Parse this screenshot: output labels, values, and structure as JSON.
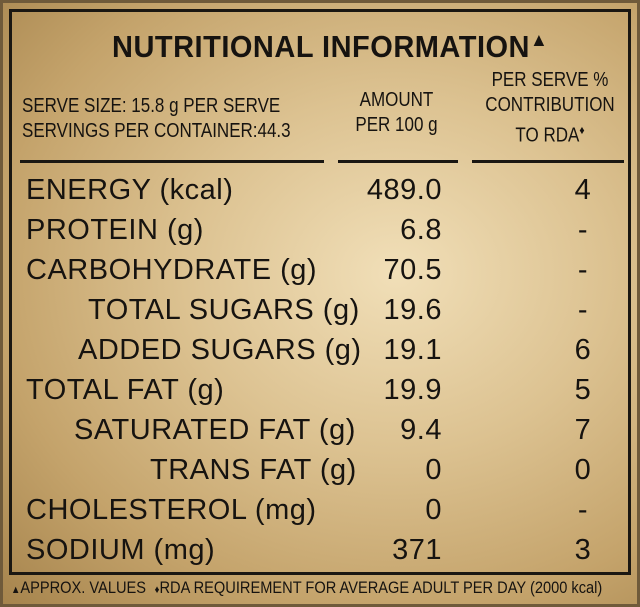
{
  "title": "NUTRITIONAL INFORMATION",
  "title_mark": "▲",
  "serve_info": {
    "serve_size": "SERVE SIZE: 15.8 g PER SERVE",
    "servings_per_container": "SERVINGS PER CONTAINER:44.3"
  },
  "columns": {
    "amount_line1": "AMOUNT",
    "amount_line2": "PER 100 g",
    "rda_line1": "PER SERVE %",
    "rda_line2": "CONTRIBUTION",
    "rda_line3": "TO RDA",
    "rda_mark": "♦"
  },
  "rows": [
    {
      "label": "ENERGY (kcal)",
      "amount": "489.0",
      "rda": "4"
    },
    {
      "label": "PROTEIN (g)",
      "amount": "6.8",
      "rda": "-"
    },
    {
      "label": "CARBOHYDRATE (g)",
      "amount": "70.5",
      "rda": "-"
    },
    {
      "label": "TOTAL SUGARS (g)",
      "amount": "19.6",
      "rda": "-"
    },
    {
      "label": "ADDED SUGARS (g)",
      "amount": "19.1",
      "rda": "6"
    },
    {
      "label": "TOTAL FAT (g)",
      "amount": "19.9",
      "rda": "5"
    },
    {
      "label": "SATURATED FAT (g)",
      "amount": "9.4",
      "rda": "7"
    },
    {
      "label": "TRANS FAT (g)",
      "amount": "0",
      "rda": "0"
    },
    {
      "label": "CHOLESTEROL (mg)",
      "amount": "0",
      "rda": "-"
    },
    {
      "label": "SODIUM (mg)",
      "amount": "371",
      "rda": "3"
    }
  ],
  "footer": {
    "mark1": "▲",
    "note1": "APPROX. VALUES",
    "mark2": "♦",
    "note2": "RDA REQUIREMENT FOR AVERAGE ADULT PER DAY (2000 kcal)"
  }
}
